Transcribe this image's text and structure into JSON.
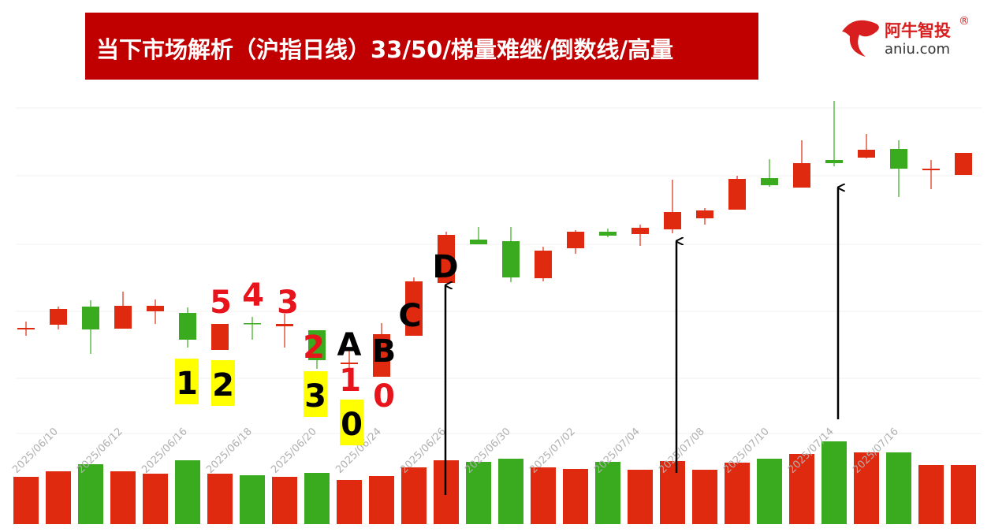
{
  "brand": {
    "name": "阿牛智投",
    "mark": "®",
    "site": "aniu.com"
  },
  "chart_data": {
    "type": "candlestick",
    "title": "当下市场解析（沪指日线）33/50/梯量难继/倒数线/高量",
    "categories": [
      null,
      "2025/06/10",
      null,
      "2025/06/12",
      null,
      "2025/06/16",
      null,
      "2025/06/18",
      null,
      "2025/06/20",
      null,
      "2025/06/24",
      null,
      "2025/06/26",
      null,
      "2025/06/30",
      null,
      "2025/07/02",
      null,
      "2025/07/04",
      null,
      "2025/07/08",
      null,
      "2025/07/10",
      null,
      "2025/07/14",
      null,
      "2025/07/16",
      null,
      null
    ],
    "open": [
      142,
      148,
      171,
      143,
      165,
      163,
      116,
      150,
      146,
      141,
      98,
      82,
      134,
      201,
      256,
      254,
      207,
      245,
      266,
      263,
      269,
      283,
      294,
      334,
      322,
      357,
      360,
      371,
      344,
      338
    ],
    "high": [
      152,
      171,
      179,
      190,
      180,
      170,
      149,
      158,
      162,
      141,
      115,
      150,
      208,
      266,
      272,
      272,
      247,
      268,
      270,
      275,
      332,
      296,
      337,
      358,
      382,
      432,
      390,
      382,
      357,
      366
    ],
    "low": [
      134,
      142,
      111,
      143,
      149,
      119,
      116,
      129,
      119,
      92,
      91,
      82,
      134,
      201,
      250,
      202,
      203,
      238,
      259,
      248,
      264,
      275,
      294,
      323,
      322,
      349,
      359,
      310,
      320,
      338
    ],
    "close": [
      144,
      168,
      142,
      172,
      172,
      129,
      149,
      149,
      149,
      103,
      100,
      136,
      203,
      262,
      250,
      208,
      242,
      266,
      261,
      271,
      291,
      293,
      333,
      325,
      353,
      353,
      370,
      346,
      346,
      366
    ],
    "ylim": [
      0,
      440
    ],
    "up_color": "#e02a10",
    "down_color": "#3aaa1e",
    "volume": {
      "values": [
        60,
        67,
        76,
        67,
        64,
        81,
        64,
        62,
        60,
        65,
        56,
        61,
        72,
        81,
        79,
        83,
        72,
        70,
        79,
        69,
        80,
        69,
        78,
        83,
        89,
        105,
        91,
        91,
        75,
        75
      ],
      "ylim": [
        0,
        110
      ]
    },
    "annotations": [
      {
        "text": "5",
        "color": "#e8141c"
      },
      {
        "text": "4",
        "color": "#e8141c"
      },
      {
        "text": "3",
        "color": "#e8141c"
      },
      {
        "text": "2",
        "color": "#e8141c"
      },
      {
        "text": "A",
        "color": "#000000"
      },
      {
        "text": "B",
        "color": "#000000"
      },
      {
        "text": "C",
        "color": "#000000"
      },
      {
        "text": "D",
        "color": "#000000"
      },
      {
        "text": "1",
        "color": "#000000",
        "highlight": "#ffff00"
      },
      {
        "text": "2",
        "color": "#000000",
        "highlight": "#ffff00"
      },
      {
        "text": "3",
        "color": "#000000",
        "highlight": "#ffff00"
      },
      {
        "text": "1",
        "color": "#e8141c"
      },
      {
        "text": "0",
        "color": "#000000",
        "highlight": "#ffff00"
      },
      {
        "text": "0",
        "color": "#e8141c"
      }
    ]
  }
}
